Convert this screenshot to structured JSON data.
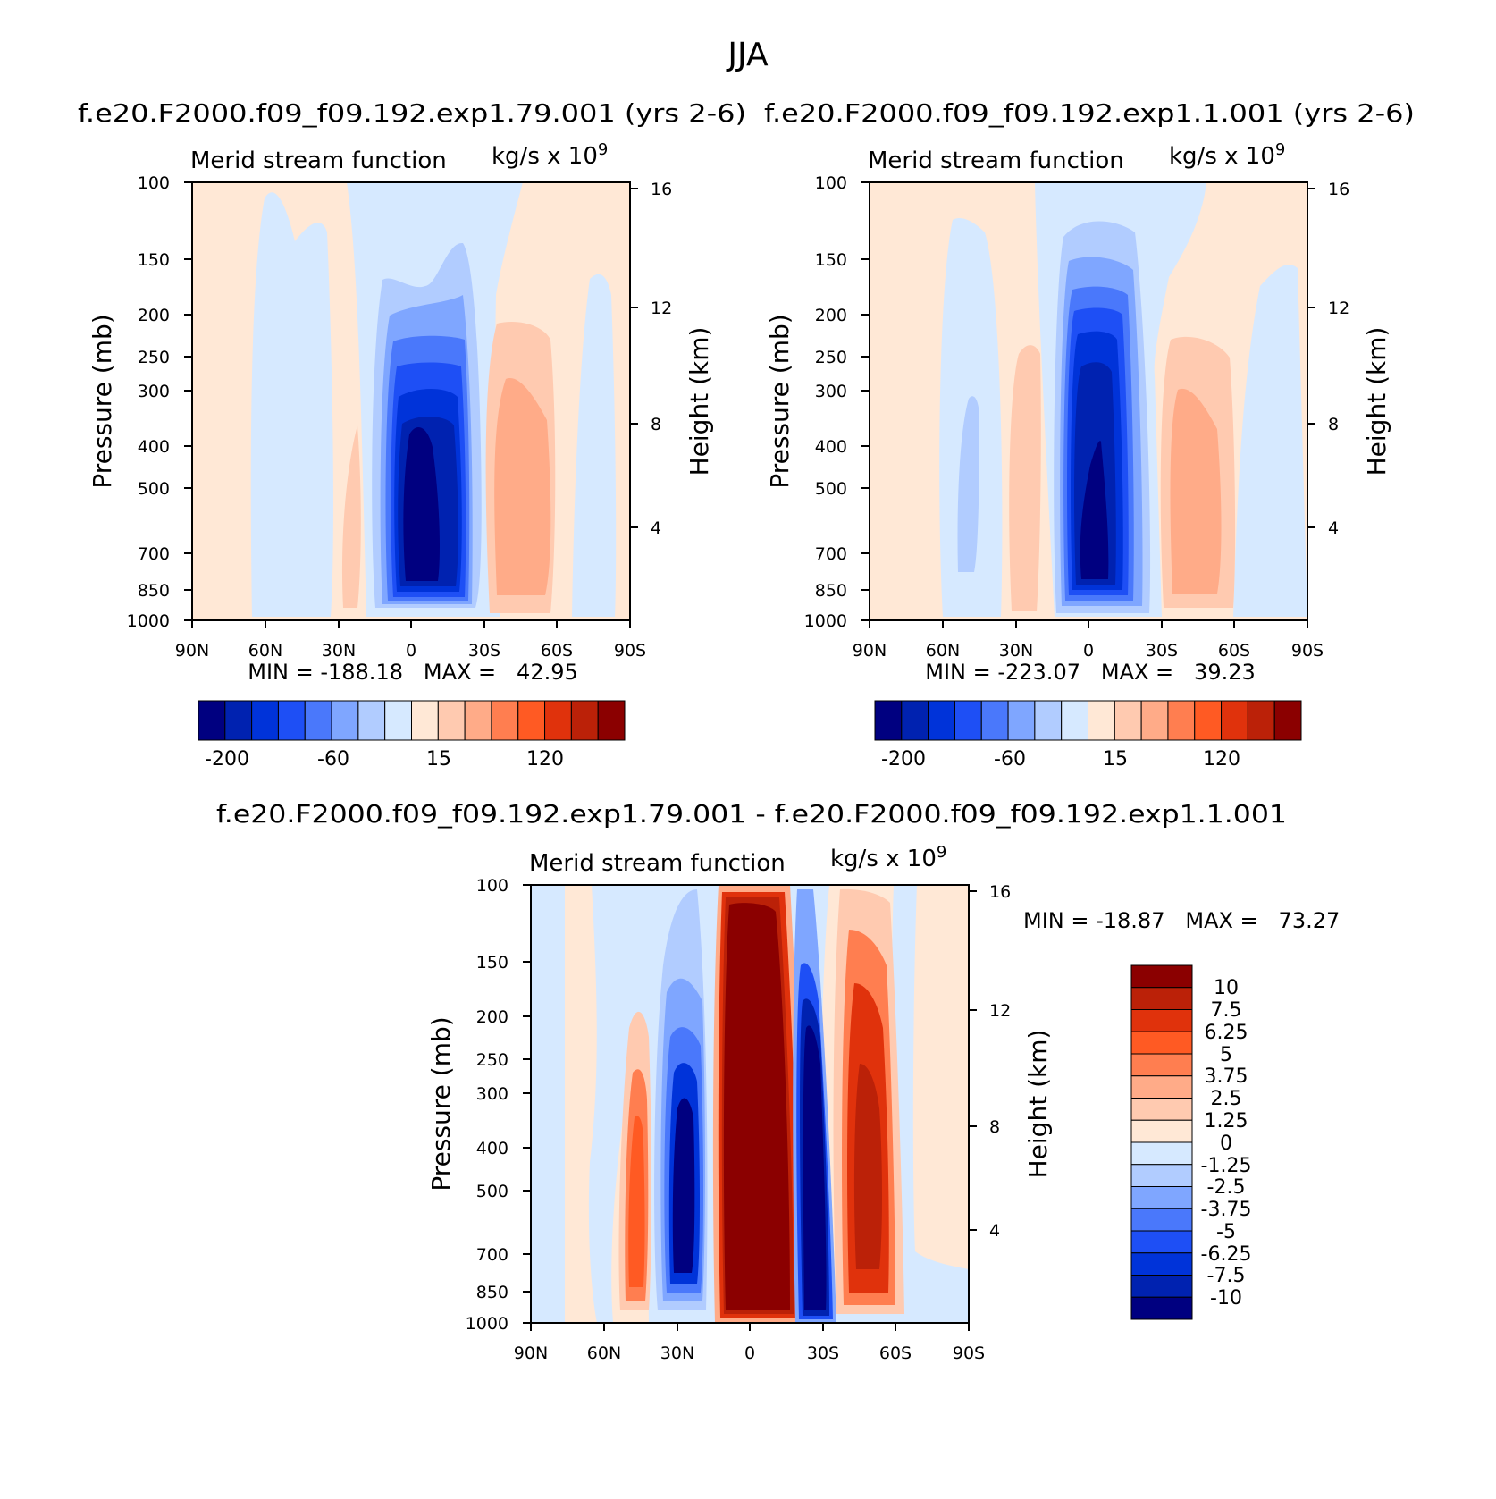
{
  "figure_title": "JJA",
  "colors": {
    "blue": [
      "#000080",
      "#0022b0",
      "#0033d9",
      "#1e4ff5",
      "#4a78fb",
      "#7fa6ff",
      "#b1ccff",
      "#d6e9ff"
    ],
    "red": [
      "#ffe8d6",
      "#ffcab0",
      "#ffab88",
      "#ff7e50",
      "#ff5a23",
      "#e0320c",
      "#bb2108",
      "#8b0000"
    ]
  },
  "panels": [
    {
      "id": "top-left",
      "case_title": "f.e20.F2000.f09_f09.192.exp1.79.001 (yrs 2-6)",
      "left_title": "Merid stream function",
      "units": "kg/s x 10",
      "units_exp": "9",
      "stats": "MIN = -188.18   MAX =   42.95",
      "xticks": [
        "90N",
        "60N",
        "30N",
        "0",
        "30S",
        "60S",
        "90S"
      ],
      "yticks": [
        "100",
        "150",
        "200",
        "250",
        "300",
        "400",
        "500",
        "700",
        "850",
        "1000"
      ],
      "ylabel": "Pressure (mb)",
      "rticks": [
        "16",
        "12",
        "8",
        "4"
      ],
      "rlabel": "Height (km)",
      "colorbar_labels": [
        "-200",
        "-60",
        "15",
        "120"
      ]
    },
    {
      "id": "top-right",
      "case_title": "f.e20.F2000.f09_f09.192.exp1.1.001 (yrs 2-6)",
      "left_title": "Merid stream function",
      "units": "kg/s x 10",
      "units_exp": "9",
      "stats": "MIN = -223.07   MAX =   39.23",
      "xticks": [
        "90N",
        "60N",
        "30N",
        "0",
        "30S",
        "60S",
        "90S"
      ],
      "yticks": [
        "100",
        "150",
        "200",
        "250",
        "300",
        "400",
        "500",
        "700",
        "850",
        "1000"
      ],
      "ylabel": "Pressure (mb)",
      "rticks": [
        "16",
        "12",
        "8",
        "4"
      ],
      "rlabel": "Height (km)",
      "colorbar_labels": [
        "-200",
        "-60",
        "15",
        "120"
      ]
    },
    {
      "id": "bottom",
      "case_title": "f.e20.F2000.f09_f09.192.exp1.79.001 - f.e20.F2000.f09_f09.192.exp1.1.001",
      "left_title": "Merid stream function",
      "units": "kg/s x 10",
      "units_exp": "9",
      "stats": "MIN = -18.87   MAX =   73.27",
      "xticks": [
        "90N",
        "60N",
        "30N",
        "0",
        "30S",
        "60S",
        "90S"
      ],
      "yticks": [
        "100",
        "150",
        "200",
        "250",
        "300",
        "400",
        "500",
        "700",
        "850",
        "1000"
      ],
      "ylabel": "Pressure (mb)",
      "rticks": [
        "16",
        "12",
        "8",
        "4"
      ],
      "rlabel": "Height (km)",
      "colorbar_labels": [
        "10",
        "7.5",
        "6.25",
        "5",
        "3.75",
        "2.5",
        "1.25",
        "0",
        "-1.25",
        "-2.5",
        "-3.75",
        "-5",
        "-6.25",
        "-7.5",
        "-10"
      ]
    }
  ],
  "chart_data": [
    {
      "type": "heatmap",
      "title": "f.e20.F2000.f09_f09.192.exp1.79.001 (yrs 2-6)",
      "xlabel": "",
      "ylabel": "Pressure (mb)",
      "x_ticks": [
        "90N",
        "60N",
        "30N",
        "0",
        "30S",
        "60S",
        "90S"
      ],
      "xlim": [
        90,
        -90
      ],
      "y_ticks": [
        100,
        150,
        200,
        250,
        300,
        400,
        500,
        700,
        850,
        1000
      ],
      "ylim": [
        1000,
        100
      ],
      "yscale": "log",
      "min": -188.18,
      "max": 42.95,
      "features": [
        {
          "lat": 24,
          "p_top": 165,
          "p_bottom": 960,
          "peak": -188.18,
          "sign": "negative"
        },
        {
          "lat": -30,
          "p_top": 200,
          "p_bottom": 950,
          "peak": 42.95,
          "sign": "positive"
        },
        {
          "lat": 55,
          "p_top": 105,
          "p_bottom": 980,
          "level": "weak negative"
        },
        {
          "lat": -65,
          "p_top": 175,
          "p_bottom": 980,
          "level": "weak negative"
        }
      ]
    },
    {
      "type": "heatmap",
      "title": "f.e20.F2000.f09_f09.192.exp1.1.001 (yrs 2-6)",
      "xlabel": "",
      "ylabel": "Pressure (mb)",
      "x_ticks": [
        "90N",
        "60N",
        "30N",
        "0",
        "30S",
        "60S",
        "90S"
      ],
      "xlim": [
        90,
        -90
      ],
      "y_ticks": [
        100,
        150,
        200,
        250,
        300,
        400,
        500,
        700,
        850,
        1000
      ],
      "ylim": [
        1000,
        100
      ],
      "yscale": "log",
      "min": -223.07,
      "max": 39.23,
      "features": [
        {
          "lat": 4,
          "p_top": 130,
          "p_bottom": 960,
          "peak": -223.07,
          "sign": "negative"
        },
        {
          "lat": -38,
          "p_top": 235,
          "p_bottom": 950,
          "peak": 39.23,
          "sign": "positive"
        },
        {
          "lat": 30,
          "p_top": 240,
          "p_bottom": 970,
          "level": "weak positive"
        },
        {
          "lat": 58,
          "p_top": 300,
          "p_bottom": 900,
          "level": "weak negative"
        }
      ]
    },
    {
      "type": "heatmap",
      "title": "f.e20.F2000.f09_f09.192.exp1.79.001 - f.e20.F2000.f09_f09.192.exp1.1.001",
      "xlabel": "",
      "ylabel": "Pressure (mb)",
      "x_ticks": [
        "90N",
        "60N",
        "30N",
        "0",
        "30S",
        "60S",
        "90S"
      ],
      "xlim": [
        90,
        -90
      ],
      "y_ticks": [
        100,
        150,
        200,
        250,
        300,
        400,
        500,
        700,
        850,
        1000
      ],
      "ylim": [
        1000,
        100
      ],
      "yscale": "log",
      "min": -18.87,
      "max": 73.27,
      "levels": [
        -10,
        -7.5,
        -6.25,
        -5,
        -3.75,
        -2.5,
        -1.25,
        0,
        1.25,
        2.5,
        3.75,
        5,
        6.25,
        7.5,
        10
      ],
      "features": [
        {
          "lat": 0,
          "p_top": 105,
          "p_bottom": 960,
          "peak": 73.27,
          "sign": "positive"
        },
        {
          "lat": -28,
          "p_top": 145,
          "p_bottom": 970,
          "peak": -18.87,
          "sign": "negative"
        },
        {
          "lat": 30,
          "p_top": 170,
          "p_bottom": 940,
          "level": "negative"
        },
        {
          "lat": 45,
          "p_top": 250,
          "p_bottom": 950,
          "level": "positive"
        },
        {
          "lat": -47,
          "p_top": 130,
          "p_bottom": 950,
          "level": "positive"
        }
      ]
    }
  ]
}
